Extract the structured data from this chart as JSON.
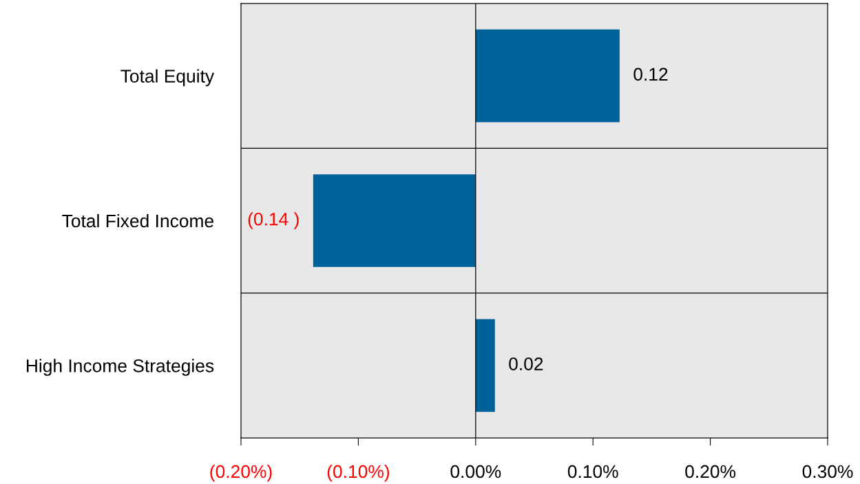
{
  "chart_data": {
    "type": "bar",
    "orientation": "horizontal",
    "categories": [
      "Total Equity",
      "Total Fixed Income",
      "High Income Strategies"
    ],
    "values": [
      0.1227,
      -0.1385,
      0.0164
    ],
    "value_labels": [
      "0.12",
      "(0.14 )",
      "0.02"
    ],
    "color": "#00629b",
    "xlim": [
      -0.2,
      0.3
    ],
    "xticks": [
      {
        "value": -0.2,
        "label": "(0.20%)"
      },
      {
        "value": -0.1,
        "label": "(0.10%)"
      },
      {
        "value": 0.0,
        "label": "0.00%"
      },
      {
        "value": 0.1,
        "label": "0.10%"
      },
      {
        "value": 0.2,
        "label": "0.20%"
      },
      {
        "value": 0.3,
        "label": "0.30%"
      }
    ],
    "ref_lines": [
      {
        "axis": "x",
        "value": 0.0,
        "color": "#000000"
      }
    ],
    "grid": false
  }
}
